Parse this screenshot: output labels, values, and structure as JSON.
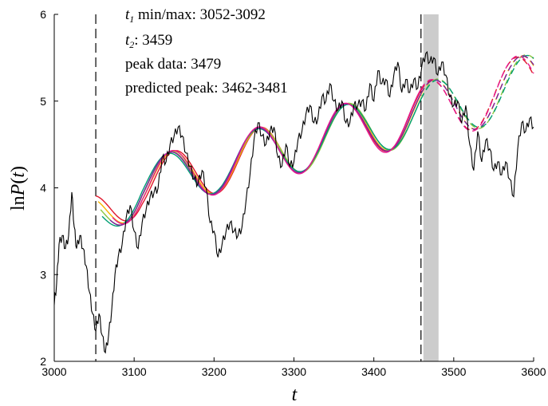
{
  "chart_data": {
    "type": "line",
    "xlabel": "t",
    "ylabel": "lnP(t)",
    "xlim": [
      3000,
      3600
    ],
    "ylim": [
      2,
      6
    ],
    "x_ticks": [
      "3000",
      "3100",
      "3200",
      "3300",
      "3400",
      "3500",
      "3600"
    ],
    "y_ticks": [
      "2",
      "3",
      "4",
      "5",
      "6"
    ],
    "annotations": {
      "t1_label": "t",
      "t1_sub": "1",
      "t1_text": " min/max: 3052-3092",
      "t2_label": "t",
      "t2_sub": "2",
      "t2_text": ": 3459",
      "peak_data": "peak data: 3479",
      "predicted_peak": "predicted peak: 3462-3481"
    },
    "vlines": [
      3052,
      3459
    ],
    "shaded_band": [
      3462,
      3481
    ],
    "data_series": {
      "color": "#000000",
      "x": [
        3000,
        3003,
        3006,
        3010,
        3014,
        3018,
        3022,
        3025,
        3028,
        3032,
        3036,
        3040,
        3044,
        3048,
        3052,
        3056,
        3060,
        3064,
        3068,
        3072,
        3076,
        3080,
        3085,
        3090,
        3095,
        3100,
        3105,
        3110,
        3115,
        3120,
        3125,
        3130,
        3135,
        3140,
        3145,
        3150,
        3155,
        3160,
        3165,
        3170,
        3175,
        3180,
        3185,
        3190,
        3195,
        3200,
        3205,
        3210,
        3215,
        3220,
        3225,
        3230,
        3235,
        3240,
        3245,
        3250,
        3255,
        3260,
        3265,
        3270,
        3275,
        3280,
        3285,
        3290,
        3295,
        3300,
        3305,
        3310,
        3315,
        3320,
        3325,
        3330,
        3335,
        3340,
        3345,
        3350,
        3355,
        3360,
        3365,
        3370,
        3375,
        3380,
        3385,
        3390,
        3395,
        3400,
        3405,
        3410,
        3415,
        3420,
        3425,
        3430,
        3435,
        3440,
        3445,
        3450,
        3455,
        3460,
        3465,
        3470,
        3475,
        3480,
        3485,
        3490,
        3495,
        3500,
        3505,
        3510,
        3515,
        3520,
        3525,
        3530,
        3535,
        3540,
        3545,
        3550,
        3555,
        3560,
        3565,
        3570,
        3575,
        3580,
        3585,
        3590,
        3595,
        3600
      ],
      "y": [
        2.65,
        2.9,
        3.35,
        3.45,
        3.3,
        3.45,
        3.95,
        3.55,
        3.3,
        3.45,
        3.3,
        3.1,
        2.8,
        2.55,
        2.35,
        2.55,
        2.3,
        2.1,
        2.3,
        2.6,
        3.0,
        3.2,
        3.35,
        3.65,
        3.8,
        3.5,
        3.3,
        3.6,
        3.75,
        3.9,
        3.95,
        4.0,
        4.35,
        4.3,
        4.5,
        4.6,
        4.7,
        4.6,
        4.4,
        4.25,
        4.1,
        4.05,
        4.2,
        4.0,
        3.6,
        3.5,
        3.2,
        3.35,
        3.5,
        3.6,
        3.5,
        3.45,
        3.55,
        3.85,
        4.15,
        4.55,
        4.75,
        4.6,
        4.5,
        4.65,
        4.7,
        4.35,
        4.25,
        4.5,
        4.25,
        4.3,
        4.55,
        4.65,
        4.85,
        4.95,
        4.75,
        4.8,
        5.05,
        5.0,
        5.2,
        5.0,
        4.9,
        5.0,
        4.75,
        4.75,
        4.95,
        4.95,
        5.0,
        4.9,
        5.2,
        5.0,
        5.35,
        5.2,
        5.25,
        5.05,
        5.3,
        5.45,
        5.1,
        5.25,
        5.1,
        5.25,
        5.15,
        5.4,
        5.55,
        5.45,
        5.5,
        5.3,
        5.45,
        5.3,
        5.05,
        4.95,
        5.0,
        4.75,
        4.95,
        4.5,
        4.2,
        4.65,
        4.3,
        4.55,
        4.45,
        4.2,
        4.3,
        4.15,
        4.3,
        4.1,
        3.9,
        4.45,
        4.75,
        4.65,
        4.8,
        4.7
      ]
    },
    "series": [
      {
        "color": "#e0162b",
        "start": 3052,
        "A": 0.3,
        "P": 107,
        "phi": 0.0
      },
      {
        "color": "#f7b500",
        "start": 3055,
        "A": 0.3,
        "P": 109,
        "phi": 0.15
      },
      {
        "color": "#8dc63f",
        "start": 3058,
        "A": 0.3,
        "P": 111,
        "phi": 0.3
      },
      {
        "color": "#009e73",
        "start": 3060,
        "A": 0.29,
        "P": 112,
        "phi": 0.45
      },
      {
        "color": "#7a1fa2",
        "start": 3070,
        "A": 0.3,
        "P": 110,
        "phi": 0.35
      },
      {
        "color": "#e6198c",
        "start": 3073,
        "A": 0.31,
        "P": 108,
        "phi": 0.2
      }
    ]
  }
}
